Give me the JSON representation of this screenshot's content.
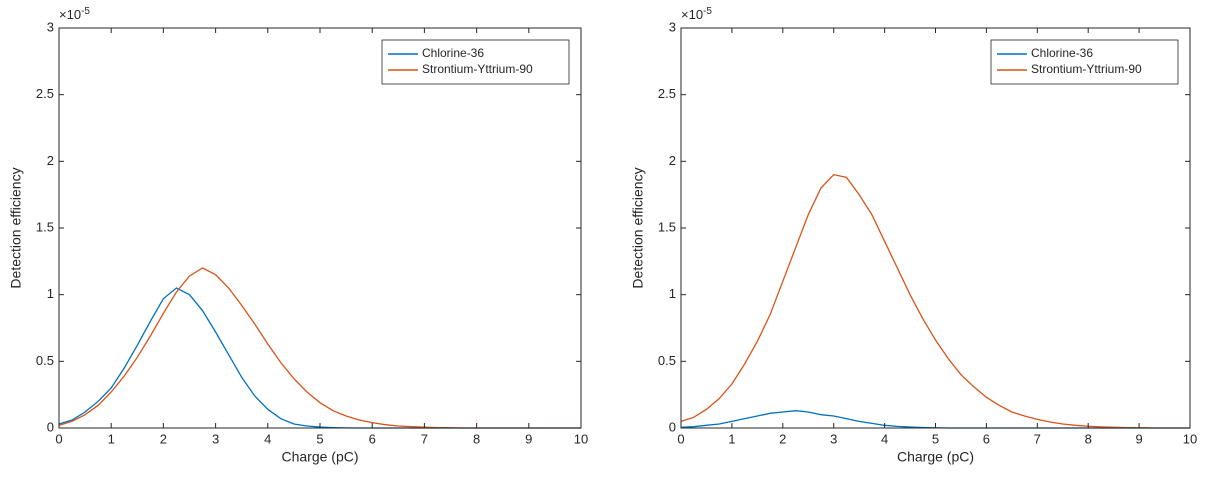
{
  "chart_data": [
    {
      "type": "line",
      "xlabel": "Charge (pC)",
      "ylabel": "Detection efficiency",
      "y_scale_base": "×10",
      "y_scale_exponent": "-5",
      "xlim": [
        0,
        10
      ],
      "xticks": [
        0,
        1,
        2,
        3,
        4,
        5,
        6,
        7,
        8,
        9,
        10
      ],
      "ylim": [
        0,
        3
      ],
      "yticks": [
        0,
        0.5,
        1,
        1.5,
        2,
        2.5,
        3
      ],
      "legend": "northeast",
      "grid": false,
      "x": [
        0,
        0.25,
        0.5,
        0.75,
        1,
        1.25,
        1.5,
        1.75,
        2,
        2.25,
        2.5,
        2.75,
        3,
        3.25,
        3.5,
        3.75,
        4,
        4.25,
        4.5,
        4.75,
        5,
        5.25,
        5.5,
        5.75,
        6,
        6.25,
        6.5,
        6.75,
        7,
        7.25,
        7.5,
        7.75,
        8,
        8.25,
        8.5,
        8.75,
        9,
        9.25,
        9.5,
        9.75,
        10
      ],
      "series": [
        {
          "name": "Chlorine-36",
          "color": "#0072BD",
          "values": [
            0.03,
            0.06,
            0.12,
            0.2,
            0.3,
            0.45,
            0.62,
            0.8,
            0.97,
            1.05,
            1.0,
            0.88,
            0.72,
            0.55,
            0.38,
            0.24,
            0.14,
            0.07,
            0.03,
            0.015,
            0.007,
            0.003,
            0.001,
            0,
            0,
            0,
            0,
            0,
            0,
            0,
            0,
            0,
            0,
            0,
            0,
            0,
            0,
            0,
            0,
            0,
            0
          ]
        },
        {
          "name": "Strontium-Yttrium-90",
          "color": "#D95319",
          "values": [
            0.02,
            0.05,
            0.1,
            0.17,
            0.27,
            0.39,
            0.53,
            0.69,
            0.86,
            1.02,
            1.14,
            1.2,
            1.15,
            1.05,
            0.92,
            0.78,
            0.63,
            0.49,
            0.37,
            0.27,
            0.19,
            0.13,
            0.09,
            0.06,
            0.04,
            0.025,
            0.015,
            0.01,
            0.006,
            0.003,
            0.002,
            0,
            0,
            0,
            0,
            0,
            0,
            0,
            0,
            0,
            0
          ]
        }
      ]
    },
    {
      "type": "line",
      "xlabel": "Charge (pC)",
      "ylabel": "Detection efficiency",
      "y_scale_base": "×10",
      "y_scale_exponent": "-5",
      "xlim": [
        0,
        10
      ],
      "xticks": [
        0,
        1,
        2,
        3,
        4,
        5,
        6,
        7,
        8,
        9,
        10
      ],
      "ylim": [
        0,
        3
      ],
      "yticks": [
        0,
        0.5,
        1,
        1.5,
        2,
        2.5,
        3
      ],
      "legend": "northeast",
      "grid": false,
      "x": [
        0,
        0.25,
        0.5,
        0.75,
        1,
        1.25,
        1.5,
        1.75,
        2,
        2.25,
        2.5,
        2.75,
        3,
        3.25,
        3.5,
        3.75,
        4,
        4.25,
        4.5,
        4.75,
        5,
        5.25,
        5.5,
        5.75,
        6,
        6.25,
        6.5,
        6.75,
        7,
        7.25,
        7.5,
        7.75,
        8,
        8.25,
        8.5,
        8.75,
        9,
        9.25,
        9.5,
        9.75,
        10
      ],
      "series": [
        {
          "name": "Chlorine-36",
          "color": "#0072BD",
          "values": [
            0.005,
            0.01,
            0.02,
            0.03,
            0.05,
            0.07,
            0.09,
            0.11,
            0.12,
            0.13,
            0.12,
            0.1,
            0.09,
            0.07,
            0.05,
            0.035,
            0.02,
            0.012,
            0.007,
            0.004,
            0.002,
            0,
            0,
            0,
            0,
            0,
            0,
            0,
            0,
            0,
            0,
            0,
            0,
            0,
            0,
            0,
            0,
            0,
            0,
            0,
            0
          ]
        },
        {
          "name": "Strontium-Yttrium-90",
          "color": "#D95319",
          "values": [
            0.05,
            0.08,
            0.14,
            0.22,
            0.33,
            0.48,
            0.65,
            0.85,
            1.1,
            1.35,
            1.6,
            1.8,
            1.9,
            1.88,
            1.75,
            1.6,
            1.4,
            1.2,
            1.0,
            0.82,
            0.66,
            0.52,
            0.4,
            0.31,
            0.23,
            0.17,
            0.12,
            0.09,
            0.065,
            0.045,
            0.03,
            0.02,
            0.013,
            0.008,
            0.005,
            0.003,
            0.002,
            0,
            0,
            0,
            0
          ]
        }
      ]
    }
  ]
}
